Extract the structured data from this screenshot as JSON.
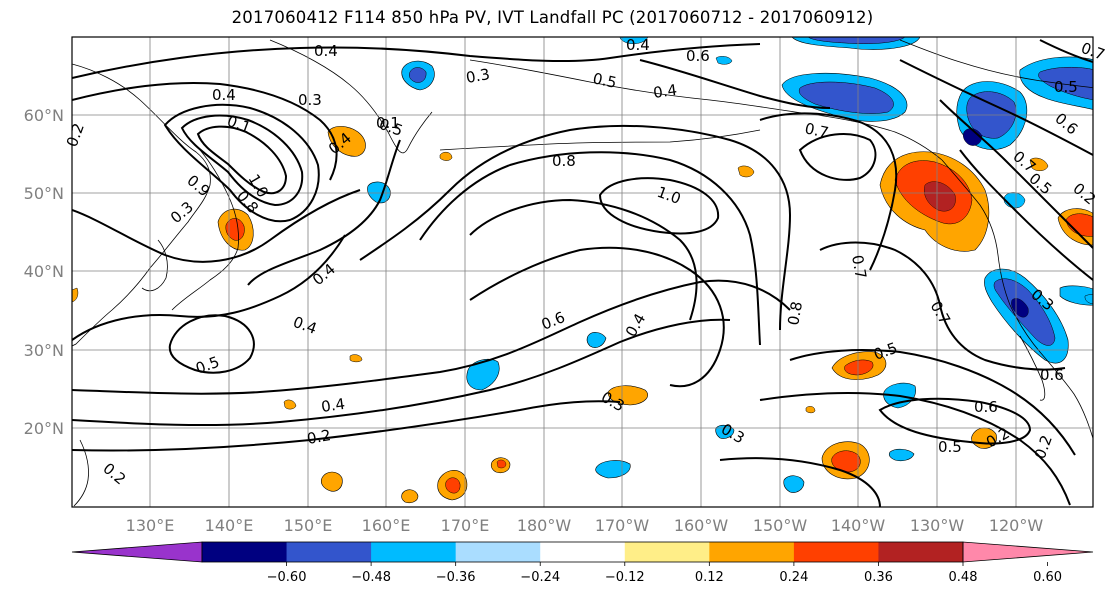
{
  "title": "2017060412 F114 850 hPa PV, IVT Landfall PC (2017060712 - 2017060912)",
  "lat_labels": [
    "60°N",
    "50°N",
    "40°N",
    "30°N",
    "20°N"
  ],
  "lon_labels": [
    "130°E",
    "140°E",
    "150°E",
    "160°E",
    "170°E",
    "180°W",
    "170°W",
    "160°W",
    "150°W",
    "140°W",
    "130°W",
    "120°W"
  ],
  "colorbar": {
    "colors": [
      "#9933cc",
      "#000080",
      "#3355cc",
      "#00bbff",
      "#aaddff",
      "#ffffff",
      "#ffee88",
      "#ffa500",
      "#ff4000",
      "#b22222",
      "#ff88aa"
    ],
    "tick_labels": [
      "−0.60",
      "−0.48",
      "−0.36",
      "−0.24",
      "−0.12",
      "0.12",
      "0.24",
      "0.36",
      "0.48",
      "0.60"
    ]
  },
  "contour_labels": [
    "0.4",
    "0.3",
    "0.5",
    "0.6",
    "0.4",
    "0.7",
    "0.5",
    "0.2",
    "0.4",
    "0.3",
    "0.1",
    "0.4",
    "0.9",
    "0.8",
    "0.1",
    "1.0",
    "0.8",
    "1.0",
    "0.7",
    "0.3",
    "0.4",
    "0.4",
    "0.6",
    "0.4",
    "0.8",
    "0.7",
    "0.7",
    "0.5",
    "0.5",
    "0.4",
    "0.3",
    "0.2",
    "0.6",
    "0.2",
    "0.5",
    "0.6",
    "0.7",
    "0.5",
    "0.2",
    "0.2",
    "0.3",
    "0.6",
    "0.3",
    "0.4",
    "0.5",
    "0.2"
  ],
  "colors": {
    "contour": "#000000",
    "grid": "#808080",
    "coast": "#000000"
  }
}
